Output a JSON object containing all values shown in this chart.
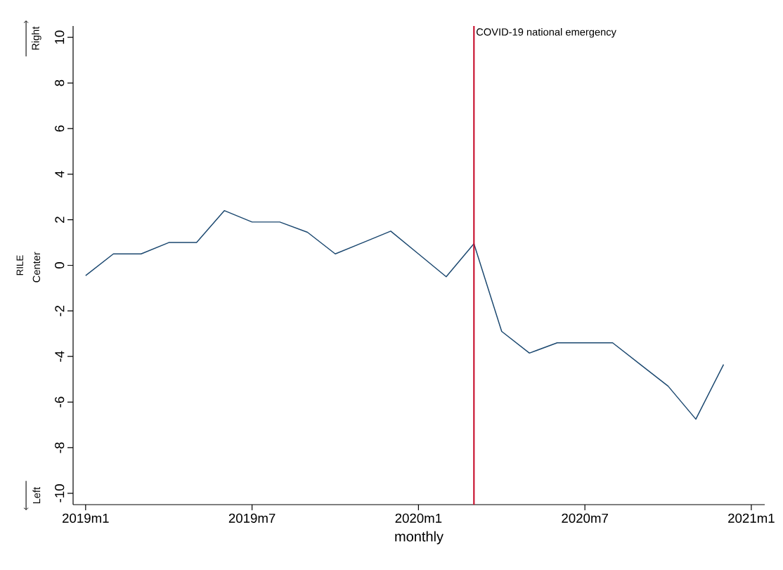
{
  "chart_data": {
    "type": "line",
    "xlabel": "monthly",
    "ylabel": "RILE",
    "x": [
      "2019-01",
      "2019-02",
      "2019-03",
      "2019-04",
      "2019-05",
      "2019-06",
      "2019-07",
      "2019-08",
      "2019-09",
      "2019-10",
      "2019-11",
      "2019-12",
      "2020-01",
      "2020-02",
      "2020-03",
      "2020-04",
      "2020-05",
      "2020-06",
      "2020-07",
      "2020-08",
      "2020-09",
      "2020-10",
      "2020-11",
      "2020-12"
    ],
    "series": [
      {
        "color": "#1a476f",
        "values": [
          -0.45,
          0.5,
          0.5,
          1.0,
          1.0,
          2.4,
          1.9,
          1.9,
          1.45,
          0.5,
          1.0,
          1.5,
          0.5,
          -0.5,
          0.95,
          -2.9,
          -3.85,
          -3.4,
          -3.4,
          -3.4,
          -4.35,
          -5.3,
          -6.75,
          -4.35
        ]
      }
    ],
    "xlim": [
      "2018-12-18",
      "2021-01-16"
    ],
    "xticks": [
      {
        "value": "2019-01",
        "label": "2019m1"
      },
      {
        "value": "2019-07",
        "label": "2019m7"
      },
      {
        "value": "2020-01",
        "label": "2020m1"
      },
      {
        "value": "2020-07",
        "label": "2020m7"
      },
      {
        "value": "2021-01",
        "label": "2021m1"
      }
    ],
    "ylim": [
      -10.5,
      10.5
    ],
    "yticks": [
      -10,
      -8,
      -6,
      -4,
      -2,
      0,
      2,
      4,
      6,
      8,
      10
    ],
    "ref_lines": [
      {
        "axis": "x",
        "value": "2020-03",
        "label": "COVID-19 national emergency",
        "color": "#c8102e"
      }
    ],
    "annotations": [
      "Right",
      "Center",
      "Left"
    ],
    "grid": false,
    "legend": false,
    "marker": "none",
    "line_style": "solid"
  }
}
